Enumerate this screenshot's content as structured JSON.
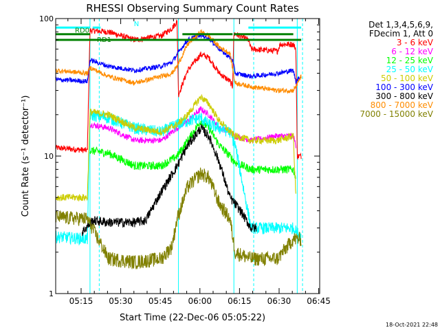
{
  "chart_data": {
    "type": "line",
    "title": "RHESSI Observing Summary Count Rates",
    "ylabel": "Count Rate (s⁻¹ detector⁻¹)",
    "xlabel": "Start Time (22-Dec-06 05:05:22)",
    "x_unit": "minutes since 05:05:22",
    "xlim": [
      0,
      100
    ],
    "ylim": [
      1,
      100
    ],
    "y_scale": "log",
    "yticks": [
      {
        "v": 1,
        "label": "1"
      },
      {
        "v": 10,
        "label": "10"
      },
      {
        "v": 100,
        "label": "100"
      }
    ],
    "xticks": [
      {
        "v": 9.63,
        "label": "05:15"
      },
      {
        "v": 24.63,
        "label": "05:30"
      },
      {
        "v": 39.63,
        "label": "05:45"
      },
      {
        "v": 54.63,
        "label": "06:00"
      },
      {
        "v": 69.63,
        "label": "06:15"
      },
      {
        "v": 84.63,
        "label": "06:30"
      },
      {
        "v": 99.63,
        "label": "06:45"
      }
    ],
    "legend": {
      "position": "right",
      "header": [
        "Det 1,3,4,5,6,9,",
        "FDecim 1, Att 0"
      ]
    },
    "series": [
      {
        "name": "3 - 6 keV",
        "color": "#ff0000",
        "noise": 0.05,
        "points": [
          [
            0,
            11.5
          ],
          [
            12,
            11
          ],
          [
            13,
            82
          ],
          [
            20,
            80
          ],
          [
            30,
            70
          ],
          [
            40,
            75
          ],
          [
            44,
            85
          ],
          [
            46,
            95
          ],
          [
            46.5,
            28
          ],
          [
            50,
            42
          ],
          [
            55,
            55
          ],
          [
            58,
            52
          ],
          [
            62,
            40
          ],
          [
            66,
            35
          ],
          [
            67,
            32
          ],
          [
            67.5,
            78
          ],
          [
            73,
            70
          ],
          [
            74,
            60
          ],
          [
            84,
            58
          ],
          [
            85,
            65
          ],
          [
            90,
            65
          ],
          [
            91,
            60
          ],
          [
            91.5,
            10
          ],
          [
            93,
            10
          ]
        ]
      },
      {
        "name": "6 - 12 keV",
        "color": "#ff00ff",
        "noise": 0.05,
        "points": [
          [
            13,
            17
          ],
          [
            20,
            16
          ],
          [
            30,
            13
          ],
          [
            40,
            13
          ],
          [
            46,
            16
          ],
          [
            50,
            18
          ],
          [
            55,
            22
          ],
          [
            58,
            20
          ],
          [
            62,
            16
          ],
          [
            66,
            15
          ],
          [
            68,
            14
          ],
          [
            74,
            13
          ],
          [
            84,
            14
          ],
          [
            90,
            14
          ],
          [
            91,
            12
          ]
        ]
      },
      {
        "name": "12 - 25 keV",
        "color": "#00ff00",
        "noise": 0.07,
        "points": [
          [
            13,
            11
          ],
          [
            20,
            10.5
          ],
          [
            30,
            8.5
          ],
          [
            40,
            8.5
          ],
          [
            46,
            10
          ],
          [
            50,
            13
          ],
          [
            55,
            18
          ],
          [
            58,
            16
          ],
          [
            62,
            12
          ],
          [
            66,
            10
          ],
          [
            68,
            9
          ],
          [
            74,
            8
          ],
          [
            84,
            8
          ],
          [
            90,
            8
          ],
          [
            91,
            7
          ]
        ]
      },
      {
        "name": "25 - 50 keV",
        "color": "#00ffff",
        "noise": 0.1,
        "points": [
          [
            0,
            2.6
          ],
          [
            12,
            2.5
          ],
          [
            13,
            20
          ],
          [
            20,
            19
          ],
          [
            30,
            16
          ],
          [
            40,
            15
          ],
          [
            46,
            17
          ],
          [
            50,
            18
          ],
          [
            55,
            19
          ],
          [
            58,
            17
          ],
          [
            62,
            16
          ],
          [
            66,
            15
          ],
          [
            68,
            12
          ],
          [
            74,
            3
          ],
          [
            84,
            3
          ],
          [
            90,
            3
          ],
          [
            93,
            2.6
          ]
        ]
      },
      {
        "name": "50 - 100 keV",
        "color": "#cccc00",
        "noise": 0.06,
        "points": [
          [
            0,
            5
          ],
          [
            12,
            5
          ],
          [
            13,
            21
          ],
          [
            20,
            20
          ],
          [
            30,
            16
          ],
          [
            40,
            15
          ],
          [
            46,
            17
          ],
          [
            50,
            20
          ],
          [
            55,
            27
          ],
          [
            58,
            24
          ],
          [
            62,
            18
          ],
          [
            66,
            15
          ],
          [
            68,
            14
          ],
          [
            74,
            13
          ],
          [
            84,
            13
          ],
          [
            90,
            14
          ],
          [
            91,
            5
          ]
        ]
      },
      {
        "name": "100 - 300 keV",
        "color": "#0000ff",
        "noise": 0.04,
        "points": [
          [
            0,
            36
          ],
          [
            12,
            35
          ],
          [
            13,
            50
          ],
          [
            20,
            45
          ],
          [
            30,
            42
          ],
          [
            40,
            45
          ],
          [
            44,
            48
          ],
          [
            46,
            55
          ],
          [
            50,
            70
          ],
          [
            55,
            76
          ],
          [
            58,
            72
          ],
          [
            62,
            60
          ],
          [
            66,
            52
          ],
          [
            67,
            50
          ],
          [
            68,
            40
          ],
          [
            74,
            38
          ],
          [
            84,
            40
          ],
          [
            90,
            42
          ],
          [
            91,
            35
          ],
          [
            93,
            38
          ]
        ]
      },
      {
        "name": "300 - 800 keV",
        "color": "#000000",
        "noise": 0.08,
        "points": [
          [
            10,
            2.8
          ],
          [
            14,
            3.4
          ],
          [
            20,
            3.3
          ],
          [
            30,
            3.3
          ],
          [
            34,
            3.4
          ],
          [
            36,
            4
          ],
          [
            40,
            5.5
          ],
          [
            46,
            8.5
          ],
          [
            50,
            12
          ],
          [
            55,
            16
          ],
          [
            58,
            14
          ],
          [
            62,
            9
          ],
          [
            66,
            5
          ],
          [
            70,
            4
          ],
          [
            74,
            3
          ],
          [
            76,
            3
          ]
        ]
      },
      {
        "name": "800 - 7000 keV",
        "color": "#ff8c00",
        "noise": 0.04,
        "points": [
          [
            0,
            42
          ],
          [
            12,
            40
          ],
          [
            13,
            44
          ],
          [
            20,
            38
          ],
          [
            30,
            34
          ],
          [
            40,
            38
          ],
          [
            44,
            40
          ],
          [
            46,
            45
          ],
          [
            50,
            65
          ],
          [
            55,
            80
          ],
          [
            58,
            75
          ],
          [
            62,
            62
          ],
          [
            66,
            56
          ],
          [
            68,
            34
          ],
          [
            74,
            32
          ],
          [
            84,
            30
          ],
          [
            90,
            30
          ],
          [
            91,
            32
          ],
          [
            93,
            38
          ]
        ]
      },
      {
        "name": "7000 - 15000 keV",
        "color": "#808000",
        "noise": 0.12,
        "points": [
          [
            0,
            3.6
          ],
          [
            12,
            3.5
          ],
          [
            20,
            1.8
          ],
          [
            30,
            1.7
          ],
          [
            40,
            1.8
          ],
          [
            44,
            2.2
          ],
          [
            46,
            3.5
          ],
          [
            50,
            6
          ],
          [
            55,
            7.5
          ],
          [
            58,
            7
          ],
          [
            62,
            4.5
          ],
          [
            66,
            3.5
          ],
          [
            68,
            2
          ],
          [
            74,
            1.8
          ],
          [
            84,
            1.8
          ],
          [
            90,
            2.5
          ],
          [
            93,
            2.5
          ]
        ]
      }
    ],
    "flag_lines": [
      {
        "label": "",
        "color": "#00ffff",
        "y": 86,
        "spans": [
          [
            0,
            13
          ],
          [
            73,
            93
          ]
        ]
      },
      {
        "label": "N",
        "color": "#00ffff",
        "y": 86,
        "spans": [
          [
            14,
            17
          ]
        ]
      },
      {
        "label": "RD0",
        "color": "#008000",
        "y": 77,
        "spans": [
          [
            0,
            13
          ],
          [
            67.5,
            90
          ]
        ]
      },
      {
        "label": "",
        "color": "#008000",
        "y": 77,
        "spans": [
          [
            48,
            67
          ]
        ]
      },
      {
        "label": "RD1",
        "color": "#008000",
        "y": 70,
        "spans": [
          [
            0,
            93
          ]
        ]
      }
    ],
    "vlines": [
      {
        "x": 13,
        "color": "#00ffff",
        "style": "solid"
      },
      {
        "x": 16.5,
        "color": "#00ffff",
        "style": "dashed"
      },
      {
        "x": 46.5,
        "color": "#00ffff",
        "style": "solid"
      },
      {
        "x": 67.5,
        "color": "#00ffff",
        "style": "solid"
      },
      {
        "x": 75,
        "color": "#00ffff",
        "style": "dashed"
      },
      {
        "x": 91.5,
        "color": "#00ffff",
        "style": "solid"
      },
      {
        "x": 93.5,
        "color": "#00ffff",
        "style": "dashed"
      }
    ]
  },
  "footer": {
    "timestamp": "18-Oct-2021 22:48"
  }
}
